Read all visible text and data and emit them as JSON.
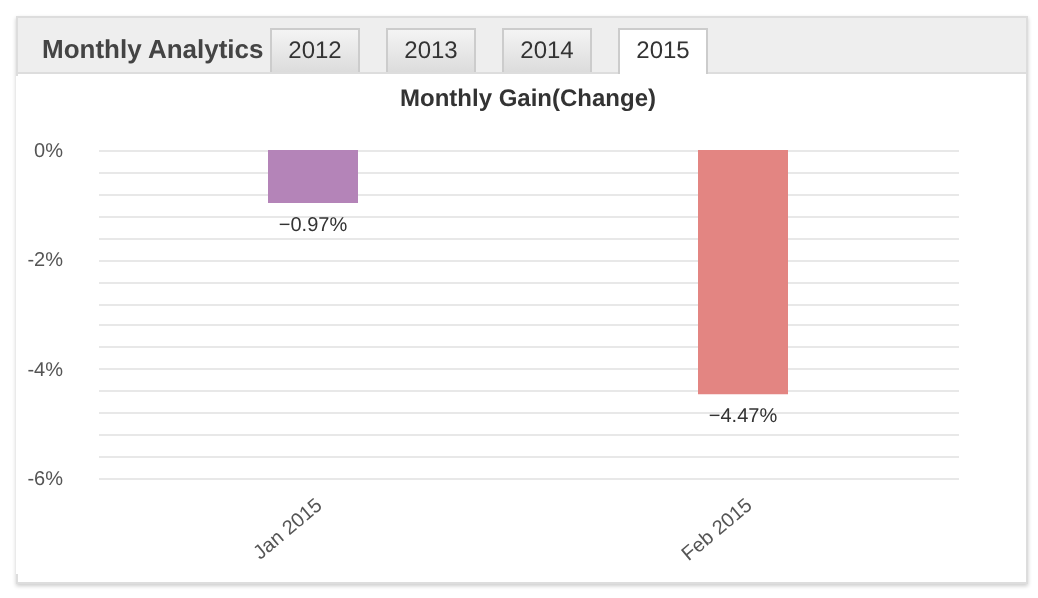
{
  "chart_data": {
    "type": "bar",
    "title": "Monthly Gain(Change)",
    "annotations": [
      "Monthly Analytics",
      "2012",
      "2013",
      "2014",
      "2015"
    ],
    "categories": [
      "Jan 2015",
      "Feb 2015"
    ],
    "values": [
      -0.97,
      -4.47
    ],
    "colors": [
      "#b484b8",
      "#e38582"
    ],
    "value_labels": [
      "−0.97%",
      "−4.47%"
    ],
    "ylim": [
      -6,
      0
    ],
    "yticks": [
      {
        "value": 0,
        "label": "0%"
      },
      {
        "value": -0.4,
        "label": null
      },
      {
        "value": -0.8,
        "label": null
      },
      {
        "value": -1.2,
        "label": null
      },
      {
        "value": -1.6,
        "label": null
      },
      {
        "value": -2,
        "label": "-2%"
      },
      {
        "value": -2.4,
        "label": null
      },
      {
        "value": -2.8,
        "label": null
      },
      {
        "value": -3.2,
        "label": null
      },
      {
        "value": -3.6,
        "label": null
      },
      {
        "value": -4,
        "label": "-4%"
      },
      {
        "value": -4.4,
        "label": null
      },
      {
        "value": -4.8,
        "label": null
      },
      {
        "value": -5.2,
        "label": null
      },
      {
        "value": -5.6,
        "label": null
      },
      {
        "value": -6,
        "label": "-6%"
      }
    ],
    "grid": "y"
  }
}
